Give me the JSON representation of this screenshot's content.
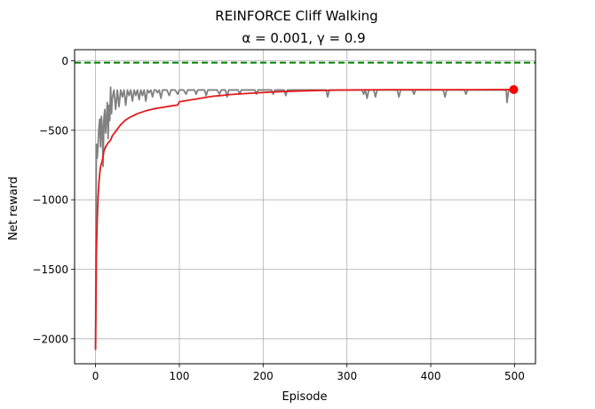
{
  "chart_data": {
    "type": "line",
    "title": "REINFORCE Cliff Walking",
    "subtitle": "α = 0.001, γ = 0.9",
    "xlabel": "Episode",
    "ylabel": "Net reward",
    "xlim": [
      -25,
      525
    ],
    "ylim": [
      -2180,
      80
    ],
    "x_ticks": [
      0,
      100,
      200,
      300,
      400,
      500
    ],
    "y_ticks": [
      0,
      -500,
      -1000,
      -1500,
      -2000
    ],
    "x_tick_labels": [
      "0",
      "100",
      "200",
      "300",
      "400",
      "500"
    ],
    "y_tick_labels": [
      "0",
      "−500",
      "−1000",
      "−1500",
      "−2000"
    ],
    "grid": true,
    "reference_line": {
      "y": -13,
      "color": "#008000",
      "style": "dashed"
    },
    "series": [
      {
        "role": "episode",
        "color": "#808080",
        "points": [
          [
            0,
            -2080
          ],
          [
            1,
            -600
          ],
          [
            2,
            -700
          ],
          [
            3,
            -600
          ],
          [
            4,
            -480
          ],
          [
            5,
            -420
          ],
          [
            6,
            -620
          ],
          [
            7,
            -400
          ],
          [
            8,
            -480
          ],
          [
            9,
            -760
          ],
          [
            10,
            -420
          ],
          [
            11,
            -350
          ],
          [
            12,
            -520
          ],
          [
            13,
            -420
          ],
          [
            14,
            -300
          ],
          [
            15,
            -560
          ],
          [
            16,
            -320
          ],
          [
            17,
            -430
          ],
          [
            18,
            -190
          ],
          [
            19,
            -380
          ],
          [
            20,
            -270
          ],
          [
            22,
            -210
          ],
          [
            24,
            -350
          ],
          [
            26,
            -210
          ],
          [
            28,
            -330
          ],
          [
            30,
            -210
          ],
          [
            32,
            -260
          ],
          [
            34,
            -210
          ],
          [
            36,
            -320
          ],
          [
            38,
            -210
          ],
          [
            40,
            -250
          ],
          [
            42,
            -210
          ],
          [
            44,
            -290
          ],
          [
            46,
            -210
          ],
          [
            48,
            -250
          ],
          [
            50,
            -210
          ],
          [
            52,
            -280
          ],
          [
            54,
            -210
          ],
          [
            56,
            -250
          ],
          [
            58,
            -210
          ],
          [
            60,
            -290
          ],
          [
            62,
            -210
          ],
          [
            64,
            -230
          ],
          [
            66,
            -210
          ],
          [
            68,
            -260
          ],
          [
            70,
            -210
          ],
          [
            72,
            -210
          ],
          [
            74,
            -230
          ],
          [
            76,
            -210
          ],
          [
            78,
            -270
          ],
          [
            80,
            -210
          ],
          [
            85,
            -210
          ],
          [
            88,
            -250
          ],
          [
            90,
            -210
          ],
          [
            95,
            -210
          ],
          [
            98,
            -240
          ],
          [
            100,
            -210
          ],
          [
            105,
            -210
          ],
          [
            108,
            -240
          ],
          [
            110,
            -210
          ],
          [
            118,
            -210
          ],
          [
            120,
            -240
          ],
          [
            122,
            -210
          ],
          [
            130,
            -210
          ],
          [
            132,
            -250
          ],
          [
            134,
            -210
          ],
          [
            145,
            -210
          ],
          [
            148,
            -240
          ],
          [
            150,
            -210
          ],
          [
            155,
            -210
          ],
          [
            157,
            -260
          ],
          [
            159,
            -210
          ],
          [
            170,
            -210
          ],
          [
            172,
            -240
          ],
          [
            174,
            -210
          ],
          [
            190,
            -210
          ],
          [
            192,
            -240
          ],
          [
            194,
            -210
          ],
          [
            210,
            -210
          ],
          [
            212,
            -240
          ],
          [
            214,
            -210
          ],
          [
            225,
            -210
          ],
          [
            227,
            -250
          ],
          [
            229,
            -210
          ],
          [
            275,
            -210
          ],
          [
            277,
            -260
          ],
          [
            279,
            -210
          ],
          [
            318,
            -210
          ],
          [
            320,
            -240
          ],
          [
            322,
            -210
          ],
          [
            322,
            -210
          ],
          [
            324,
            -270
          ],
          [
            326,
            -210
          ],
          [
            332,
            -210
          ],
          [
            334,
            -260
          ],
          [
            336,
            -210
          ],
          [
            360,
            -210
          ],
          [
            362,
            -260
          ],
          [
            364,
            -210
          ],
          [
            378,
            -210
          ],
          [
            380,
            -240
          ],
          [
            382,
            -210
          ],
          [
            415,
            -210
          ],
          [
            417,
            -260
          ],
          [
            419,
            -210
          ],
          [
            440,
            -210
          ],
          [
            442,
            -240
          ],
          [
            444,
            -210
          ],
          [
            490,
            -210
          ],
          [
            491,
            -300
          ],
          [
            493,
            -210
          ],
          [
            499,
            -210
          ]
        ]
      },
      {
        "role": "running-average",
        "color": "#e31a1c",
        "points": [
          [
            0,
            -2080
          ],
          [
            1,
            -1380
          ],
          [
            2,
            -1150
          ],
          [
            3,
            -980
          ],
          [
            4,
            -880
          ],
          [
            5,
            -810
          ],
          [
            6,
            -760
          ],
          [
            8,
            -720
          ],
          [
            10,
            -650
          ],
          [
            12,
            -620
          ],
          [
            15,
            -590
          ],
          [
            18,
            -570
          ],
          [
            20,
            -540
          ],
          [
            25,
            -500
          ],
          [
            30,
            -460
          ],
          [
            35,
            -430
          ],
          [
            40,
            -410
          ],
          [
            45,
            -395
          ],
          [
            50,
            -380
          ],
          [
            60,
            -360
          ],
          [
            70,
            -345
          ],
          [
            80,
            -335
          ],
          [
            90,
            -325
          ],
          [
            98,
            -318
          ],
          [
            100,
            -295
          ],
          [
            110,
            -285
          ],
          [
            120,
            -275
          ],
          [
            130,
            -265
          ],
          [
            140,
            -255
          ],
          [
            150,
            -250
          ],
          [
            160,
            -243
          ],
          [
            180,
            -235
          ],
          [
            200,
            -228
          ],
          [
            220,
            -222
          ],
          [
            240,
            -218
          ],
          [
            260,
            -214
          ],
          [
            280,
            -212
          ],
          [
            300,
            -210
          ],
          [
            320,
            -209
          ],
          [
            350,
            -208
          ],
          [
            400,
            -208
          ],
          [
            450,
            -208
          ],
          [
            499,
            -207
          ]
        ]
      }
    ],
    "highlight_point": {
      "x": 499,
      "y": -207,
      "color": "#ff0000"
    }
  }
}
